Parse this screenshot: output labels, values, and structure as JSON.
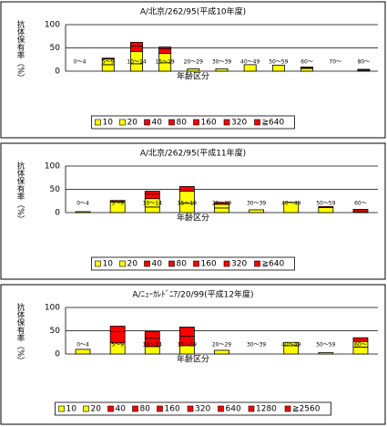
{
  "chart_data": [
    {
      "type": "bar",
      "stacked": true,
      "title": "A/北京/262/95(平成10年度)",
      "xlabel": "年齢区分",
      "ylabel": "抗体保有率（%）",
      "categories": [
        "0～4",
        "5～9",
        "10～14",
        "15～19",
        "20～29",
        "30～39",
        "40～49",
        "50～59",
        "60～",
        "70～",
        "80～"
      ],
      "series": [
        {
          "name": "10",
          "color": "#ffff00",
          "values": [
            0,
            14,
            16,
            18,
            5,
            5,
            14,
            13,
            6,
            0,
            2
          ]
        },
        {
          "name": "20",
          "color": "#ffff00",
          "values": [
            0,
            12,
            26,
            20,
            0,
            0,
            0,
            0,
            1,
            0,
            0
          ]
        },
        {
          "name": "40",
          "color": "#ff0000",
          "values": [
            0,
            2,
            12,
            10,
            0,
            0,
            0,
            0,
            2,
            0,
            2
          ]
        },
        {
          "name": "80",
          "color": "#ff0000",
          "values": [
            0,
            0,
            8,
            4,
            0,
            0,
            0,
            0,
            0,
            0,
            0
          ]
        },
        {
          "name": "160",
          "color": "#ff0000",
          "values": [
            0,
            0,
            0,
            0,
            0,
            0,
            0,
            0,
            0,
            0,
            0
          ]
        },
        {
          "name": "320",
          "color": "#ff0000",
          "values": [
            0,
            0,
            0,
            0,
            0,
            0,
            0,
            0,
            0,
            0,
            0
          ]
        },
        {
          "name": "≧640",
          "color": "#ff0000",
          "values": [
            0,
            0,
            0,
            0,
            0,
            0,
            0,
            0,
            0,
            0,
            0
          ]
        }
      ],
      "ylim": [
        0,
        100
      ],
      "yticks": [
        0,
        50,
        100
      ],
      "grid": true
    },
    {
      "type": "bar",
      "stacked": true,
      "title": "A/北京/262/95(平成11年度)",
      "xlabel": "年齢区分",
      "ylabel": "抗体保有率（%）",
      "categories": [
        "0～4",
        "5～9",
        "10～14",
        "15～19",
        "20～29",
        "30～39",
        "40～49",
        "50～59",
        "60～"
      ],
      "series": [
        {
          "name": "10",
          "color": "#ffff00",
          "values": [
            2,
            23,
            12,
            20,
            10,
            6,
            22,
            11,
            2
          ]
        },
        {
          "name": "20",
          "color": "#ffff00",
          "values": [
            0,
            0,
            18,
            26,
            8,
            0,
            0,
            0,
            0
          ]
        },
        {
          "name": "40",
          "color": "#ff0000",
          "values": [
            0,
            3,
            10,
            10,
            4,
            0,
            0,
            2,
            5
          ]
        },
        {
          "name": "80",
          "color": "#ff0000",
          "values": [
            0,
            0,
            6,
            0,
            0,
            0,
            0,
            0,
            0
          ]
        },
        {
          "name": "160",
          "color": "#ff0000",
          "values": [
            0,
            0,
            0,
            0,
            0,
            0,
            0,
            0,
            0
          ]
        },
        {
          "name": "320",
          "color": "#ff0000",
          "values": [
            0,
            0,
            0,
            0,
            0,
            0,
            0,
            0,
            0
          ]
        },
        {
          "name": "≧640",
          "color": "#ff0000",
          "values": [
            0,
            0,
            0,
            0,
            0,
            0,
            0,
            0,
            0
          ]
        }
      ],
      "ylim": [
        0,
        100
      ],
      "yticks": [
        0,
        50,
        100
      ],
      "grid": true
    },
    {
      "type": "bar",
      "stacked": true,
      "title": "A/ﾆｭｰｶﾚﾄﾞﾆｱ/20/99(平成12年度)",
      "xlabel": "年齢区分",
      "ylabel": "抗体保有率（%）",
      "categories": [
        "0～4",
        "5～9",
        "10～14",
        "15～19",
        "20～29",
        "30～39",
        "40～49",
        "50～59",
        "60～"
      ],
      "series": [
        {
          "name": "10",
          "color": "#ffff00",
          "values": [
            10,
            24,
            16,
            18,
            8,
            0,
            18,
            3,
            15
          ]
        },
        {
          "name": "20",
          "color": "#ffff00",
          "values": [
            0,
            0,
            0,
            0,
            0,
            0,
            7,
            0,
            12
          ]
        },
        {
          "name": "40",
          "color": "#ff0000",
          "values": [
            0,
            24,
            18,
            20,
            0,
            0,
            0,
            0,
            8
          ]
        },
        {
          "name": "80",
          "color": "#ff0000",
          "values": [
            0,
            12,
            14,
            20,
            0,
            0,
            0,
            0,
            0
          ]
        },
        {
          "name": "160",
          "color": "#ff0000",
          "values": [
            0,
            0,
            0,
            0,
            0,
            0,
            0,
            0,
            0
          ]
        },
        {
          "name": "320",
          "color": "#ff0000",
          "values": [
            0,
            0,
            0,
            0,
            0,
            0,
            0,
            0,
            0
          ]
        },
        {
          "name": "640",
          "color": "#ff0000",
          "values": [
            0,
            0,
            0,
            0,
            0,
            0,
            0,
            0,
            0
          ]
        },
        {
          "name": "1280",
          "color": "#ff0000",
          "values": [
            0,
            0,
            0,
            0,
            0,
            0,
            0,
            0,
            0
          ]
        },
        {
          "name": "≧2560",
          "color": "#ff0000",
          "values": [
            0,
            0,
            0,
            0,
            0,
            0,
            0,
            0,
            0
          ]
        }
      ],
      "ylim": [
        0,
        100
      ],
      "yticks": [
        0,
        50,
        100
      ],
      "grid": true
    }
  ]
}
